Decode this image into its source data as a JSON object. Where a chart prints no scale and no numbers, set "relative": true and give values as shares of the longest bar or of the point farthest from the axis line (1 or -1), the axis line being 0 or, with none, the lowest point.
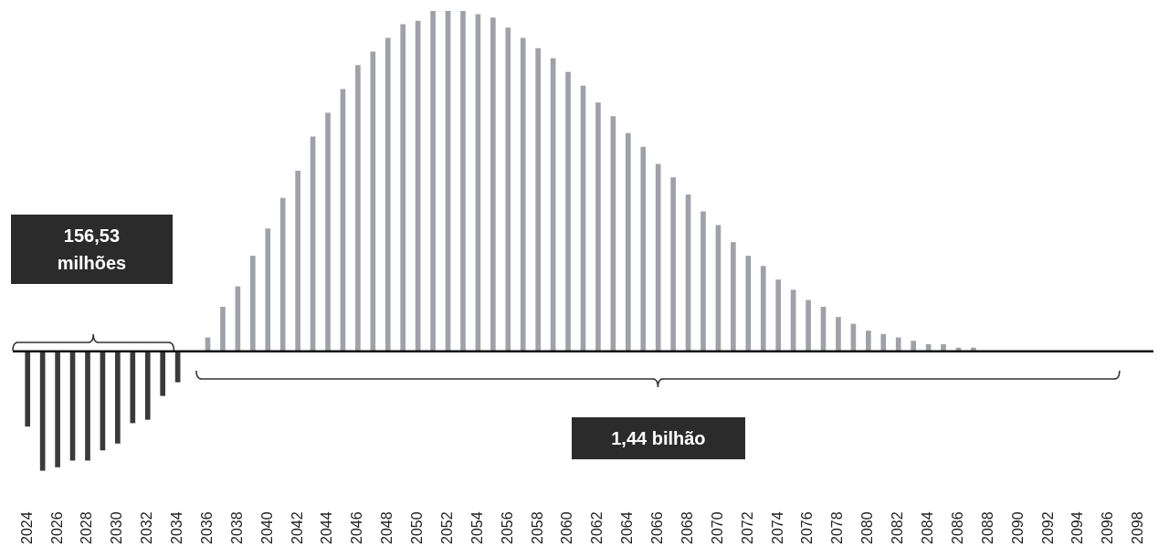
{
  "chart_data": {
    "type": "bar",
    "relative": true,
    "categories": [
      "2024",
      null,
      "2026",
      null,
      "2028",
      null,
      "2030",
      null,
      "2032",
      null,
      "2034",
      null,
      "2036",
      null,
      "2038",
      null,
      "2040",
      null,
      "2042",
      null,
      "2044",
      null,
      "2046",
      null,
      "2048",
      null,
      "2050",
      null,
      "2052",
      null,
      "2054",
      null,
      "2056",
      null,
      "2058",
      null,
      "2060",
      null,
      "2062",
      null,
      "2064",
      null,
      "2066",
      null,
      "2068",
      null,
      "2070",
      null,
      "2072",
      null,
      "2074",
      null,
      "2076",
      null,
      "2078",
      null,
      "2080",
      null,
      "2082",
      null,
      "2084",
      null,
      "2086",
      null,
      "2088",
      null,
      "2090",
      null,
      "2092",
      null,
      "2094",
      null,
      "2096",
      null,
      "2098"
    ],
    "values": [
      -0.22,
      -0.35,
      -0.34,
      -0.32,
      -0.32,
      -0.29,
      -0.27,
      -0.21,
      -0.2,
      -0.13,
      -0.09,
      0,
      0.04,
      0.13,
      0.19,
      0.28,
      0.36,
      0.45,
      0.53,
      0.63,
      0.7,
      0.77,
      0.84,
      0.88,
      0.92,
      0.96,
      0.97,
      1,
      1,
      1,
      0.99,
      0.98,
      0.95,
      0.92,
      0.89,
      0.86,
      0.82,
      0.78,
      0.73,
      0.69,
      0.64,
      0.6,
      0.55,
      0.51,
      0.46,
      0.41,
      0.37,
      0.32,
      0.28,
      0.25,
      0.21,
      0.18,
      0.15,
      0.13,
      0.1,
      0.08,
      0.06,
      0.05,
      0.04,
      0.03,
      0.02,
      0.02,
      0.01,
      0.01,
      0,
      0,
      0,
      0,
      0,
      0,
      0,
      0,
      0,
      0,
      0
    ],
    "colors": [
      "#3a3a3a",
      "#3a3a3a",
      "#3a3a3a",
      "#3a3a3a",
      "#3a3a3a",
      "#3a3a3a",
      "#3a3a3a",
      "#3a3a3a",
      "#3a3a3a",
      "#3a3a3a",
      "#3a3a3a",
      "#3a3a3a",
      "#9ea2a8",
      "#9ea2a8",
      "#9ea2a8",
      "#9ea2a8",
      "#9ea2a8",
      "#9ea2a8",
      "#9ea2a8",
      "#9ea2a8",
      "#9ea2a8",
      "#9ea2a8",
      "#9ea2a8",
      "#9ea2a8",
      "#9ea2a8",
      "#9ea2a8",
      "#9ea2a8",
      "#9ea2a8",
      "#9ea2a8",
      "#9ea2a8",
      "#9ea2a8",
      "#9ea2a8",
      "#9ea2a8",
      "#9ea2a8",
      "#9ea2a8",
      "#9ea2a8",
      "#9ea2a8",
      "#9ea2a8",
      "#9ea2a8",
      "#9ea2a8",
      "#9ea2a8",
      "#9ea2a8",
      "#9ea2a8",
      "#9ea2a8",
      "#9ea2a8",
      "#9ea2a8",
      "#9ea2a8",
      "#9ea2a8",
      "#9ea2a8",
      "#9ea2a8",
      "#9ea2a8",
      "#9ea2a8",
      "#9ea2a8",
      "#9ea2a8",
      "#9ea2a8",
      "#9ea2a8",
      "#9ea2a8",
      "#9ea2a8",
      "#9ea2a8",
      "#9ea2a8",
      "#9ea2a8",
      "#9ea2a8",
      "#9ea2a8",
      "#9ea2a8",
      "#9ea2a8",
      "#9ea2a8",
      "#9ea2a8",
      "#9ea2a8",
      "#9ea2a8",
      "#9ea2a8",
      "#9ea2a8",
      "#9ea2a8",
      "#9ea2a8",
      "#9ea2a8",
      "#9ea2a8"
    ],
    "annotations": [
      "156,53 milhões",
      "1,44 bilhão"
    ],
    "grid": false,
    "legend": false
  }
}
